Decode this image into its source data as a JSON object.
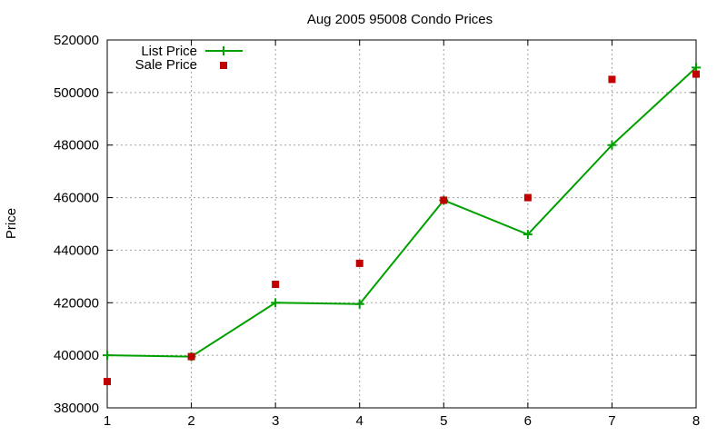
{
  "chart_data": {
    "type": "line",
    "title": "Aug 2005 95008 Condo Prices",
    "xlabel": "",
    "ylabel": "Price",
    "xlim": [
      1,
      8
    ],
    "ylim": [
      380000,
      520000
    ],
    "x_ticks": [
      "1",
      "2",
      "3",
      "4",
      "5",
      "6",
      "7",
      "8"
    ],
    "y_ticks": [
      "380000",
      "400000",
      "420000",
      "440000",
      "460000",
      "480000",
      "500000",
      "520000"
    ],
    "grid": true,
    "legend_position": "top-left",
    "x": [
      1,
      2,
      3,
      4,
      5,
      6,
      7,
      8
    ],
    "series": [
      {
        "name": "List Price",
        "style": "line-with-plus-markers",
        "color": "#00a000",
        "values": [
          400000,
          399500,
          420000,
          419500,
          459000,
          446000,
          480000,
          509500
        ]
      },
      {
        "name": "Sale Price",
        "style": "square-markers",
        "color": "#c00000",
        "values": [
          390000,
          399500,
          427000,
          435000,
          459000,
          460000,
          505000,
          507000
        ]
      }
    ]
  }
}
